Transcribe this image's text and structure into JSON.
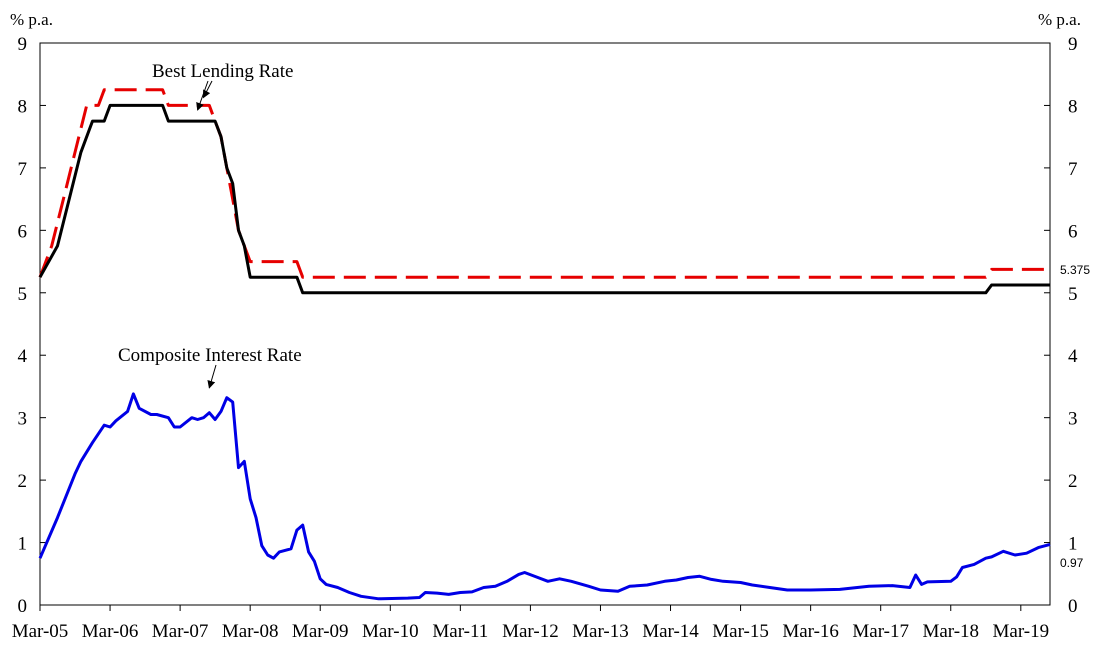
{
  "chart_data": {
    "type": "line",
    "y_unit_left": "% p.a.",
    "y_unit_right": "% p.a.",
    "ylim": [
      0,
      9
    ],
    "yticks": [
      "0",
      "1",
      "2",
      "3",
      "4",
      "5",
      "6",
      "7",
      "8",
      "9"
    ],
    "xticks": [
      "Mar-05",
      "Mar-06",
      "Mar-07",
      "Mar-08",
      "Mar-09",
      "Mar-10",
      "Mar-11",
      "Mar-12",
      "Mar-13",
      "Mar-14",
      "Mar-15",
      "Mar-16",
      "Mar-17",
      "Mar-18",
      "Mar-19"
    ],
    "xlim": [
      "2005-03",
      "2019-08"
    ],
    "annotations": [
      {
        "text": "Best Lending Rate",
        "arrows_to": [
          {
            "x": "2007-06",
            "y": 7.8
          },
          {
            "x": "2007-07",
            "y": 8.0
          }
        ]
      },
      {
        "text": "Composite Interest Rate",
        "arrows_to": [
          {
            "x": "2007-08",
            "y": 3.35
          }
        ]
      }
    ],
    "end_labels": [
      {
        "text": "5.375",
        "series": 0
      },
      {
        "text": "0.97",
        "series": 2
      }
    ],
    "series": [
      {
        "color": "#e60000",
        "dash": true,
        "points": [
          [
            "2005-03",
            5.25
          ],
          [
            "2005-05",
            5.75
          ],
          [
            "2005-07",
            6.5
          ],
          [
            "2005-09",
            7.25
          ],
          [
            "2005-11",
            8.0
          ],
          [
            "2006-01",
            8.0
          ],
          [
            "2006-02",
            8.25
          ],
          [
            "2006-12",
            8.25
          ],
          [
            "2007-01",
            8.0
          ],
          [
            "2007-08",
            8.0
          ],
          [
            "2007-09",
            7.75
          ],
          [
            "2007-10",
            7.5
          ],
          [
            "2007-11",
            7.0
          ],
          [
            "2007-12",
            6.5
          ],
          [
            "2008-01",
            6.0
          ],
          [
            "2008-02",
            5.75
          ],
          [
            "2008-03",
            5.5
          ],
          [
            "2008-11",
            5.5
          ],
          [
            "2008-12",
            5.25
          ],
          [
            "2018-09",
            5.25
          ],
          [
            "2018-10",
            5.375
          ],
          [
            "2019-08",
            5.375
          ]
        ]
      },
      {
        "color": "#000000",
        "dash": false,
        "points": [
          [
            "2005-03",
            5.25
          ],
          [
            "2005-06",
            5.75
          ],
          [
            "2005-08",
            6.5
          ],
          [
            "2005-10",
            7.25
          ],
          [
            "2005-12",
            7.75
          ],
          [
            "2006-02",
            7.75
          ],
          [
            "2006-03",
            8.0
          ],
          [
            "2006-12",
            8.0
          ],
          [
            "2007-01",
            7.75
          ],
          [
            "2007-09",
            7.75
          ],
          [
            "2007-10",
            7.5
          ],
          [
            "2007-11",
            7.0
          ],
          [
            "2007-12",
            6.75
          ],
          [
            "2008-01",
            6.0
          ],
          [
            "2008-02",
            5.75
          ],
          [
            "2008-03",
            5.25
          ],
          [
            "2008-11",
            5.25
          ],
          [
            "2008-12",
            5.0
          ],
          [
            "2018-09",
            5.0
          ],
          [
            "2018-10",
            5.125
          ],
          [
            "2019-08",
            5.125
          ]
        ]
      },
      {
        "color": "#0000e6",
        "dash": false,
        "points": [
          [
            "2005-03",
            0.75
          ],
          [
            "2005-06",
            1.4
          ],
          [
            "2005-09",
            2.1
          ],
          [
            "2005-10",
            2.3
          ],
          [
            "2005-12",
            2.6
          ],
          [
            "2006-02",
            2.88
          ],
          [
            "2006-03",
            2.85
          ],
          [
            "2006-04",
            2.95
          ],
          [
            "2006-06",
            3.1
          ],
          [
            "2006-07",
            3.38
          ],
          [
            "2006-08",
            3.15
          ],
          [
            "2006-10",
            3.05
          ],
          [
            "2006-11",
            3.05
          ],
          [
            "2007-01",
            3.0
          ],
          [
            "2007-02",
            2.85
          ],
          [
            "2007-03",
            2.85
          ],
          [
            "2007-05",
            3.0
          ],
          [
            "2007-06",
            2.97
          ],
          [
            "2007-07",
            3.0
          ],
          [
            "2007-08",
            3.08
          ],
          [
            "2007-09",
            2.97
          ],
          [
            "2007-10",
            3.1
          ],
          [
            "2007-11",
            3.32
          ],
          [
            "2007-12",
            3.25
          ],
          [
            "2008-01",
            2.2
          ],
          [
            "2008-02",
            2.3
          ],
          [
            "2008-03",
            1.7
          ],
          [
            "2008-04",
            1.4
          ],
          [
            "2008-05",
            0.95
          ],
          [
            "2008-06",
            0.8
          ],
          [
            "2008-07",
            0.75
          ],
          [
            "2008-08",
            0.85
          ],
          [
            "2008-10",
            0.9
          ],
          [
            "2008-11",
            1.2
          ],
          [
            "2008-12",
            1.28
          ],
          [
            "2009-01",
            0.85
          ],
          [
            "2009-02",
            0.7
          ],
          [
            "2009-03",
            0.42
          ],
          [
            "2009-04",
            0.33
          ],
          [
            "2009-06",
            0.28
          ],
          [
            "2009-08",
            0.2
          ],
          [
            "2009-10",
            0.14
          ],
          [
            "2010-01",
            0.1
          ],
          [
            "2010-06",
            0.11
          ],
          [
            "2010-08",
            0.12
          ],
          [
            "2010-09",
            0.2
          ],
          [
            "2010-11",
            0.19
          ],
          [
            "2011-01",
            0.17
          ],
          [
            "2011-03",
            0.2
          ],
          [
            "2011-05",
            0.21
          ],
          [
            "2011-07",
            0.28
          ],
          [
            "2011-09",
            0.3
          ],
          [
            "2011-11",
            0.38
          ],
          [
            "2012-01",
            0.49
          ],
          [
            "2012-02",
            0.52
          ],
          [
            "2012-04",
            0.45
          ],
          [
            "2012-06",
            0.38
          ],
          [
            "2012-08",
            0.42
          ],
          [
            "2012-10",
            0.38
          ],
          [
            "2013-01",
            0.3
          ],
          [
            "2013-03",
            0.24
          ],
          [
            "2013-06",
            0.22
          ],
          [
            "2013-08",
            0.3
          ],
          [
            "2013-11",
            0.32
          ],
          [
            "2014-02",
            0.38
          ],
          [
            "2014-04",
            0.4
          ],
          [
            "2014-06",
            0.44
          ],
          [
            "2014-08",
            0.46
          ],
          [
            "2014-10",
            0.41
          ],
          [
            "2014-12",
            0.38
          ],
          [
            "2015-03",
            0.36
          ],
          [
            "2015-05",
            0.32
          ],
          [
            "2015-08",
            0.28
          ],
          [
            "2015-11",
            0.24
          ],
          [
            "2016-03",
            0.24
          ],
          [
            "2016-08",
            0.25
          ],
          [
            "2016-11",
            0.28
          ],
          [
            "2017-01",
            0.3
          ],
          [
            "2017-05",
            0.31
          ],
          [
            "2017-08",
            0.28
          ],
          [
            "2017-09",
            0.48
          ],
          [
            "2017-10",
            0.33
          ],
          [
            "2017-11",
            0.37
          ],
          [
            "2018-03",
            0.38
          ],
          [
            "2018-04",
            0.45
          ],
          [
            "2018-05",
            0.6
          ],
          [
            "2018-07",
            0.65
          ],
          [
            "2018-09",
            0.75
          ],
          [
            "2018-10",
            0.77
          ],
          [
            "2018-12",
            0.86
          ],
          [
            "2019-02",
            0.8
          ],
          [
            "2019-04",
            0.83
          ],
          [
            "2019-06",
            0.92
          ],
          [
            "2019-08",
            0.97
          ]
        ]
      }
    ]
  }
}
